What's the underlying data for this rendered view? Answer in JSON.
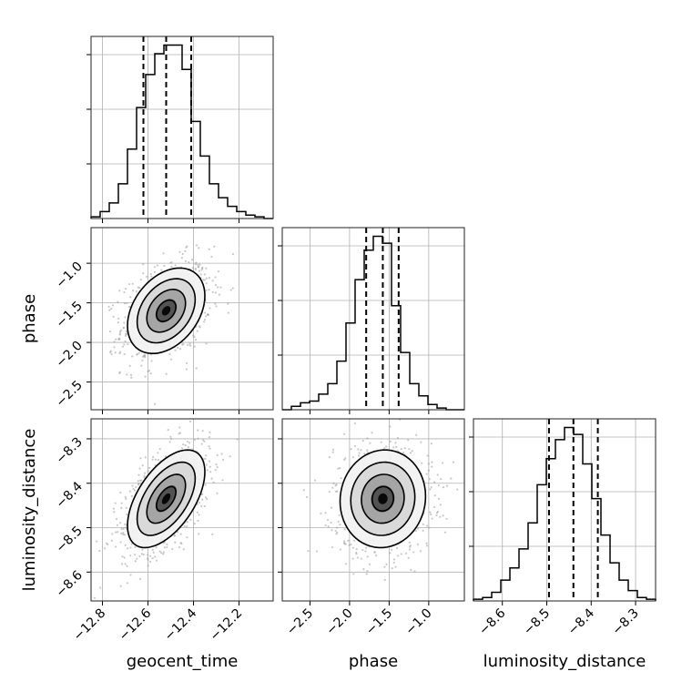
{
  "chart_data": {
    "type": "corner",
    "parameters": [
      {
        "name": "geocent_time",
        "label": "geocent_time",
        "range": [
          -12.85,
          -12.05
        ],
        "ticks": [
          -12.8,
          -12.6,
          -12.4,
          -12.2
        ],
        "tick_labels": [
          "−12.8",
          "−12.6",
          "−12.4",
          "−12.2"
        ],
        "quantiles": [
          -12.62,
          -12.52,
          -12.41
        ],
        "hist": {
          "edges": [
            -12.85,
            -12.81,
            -12.77,
            -12.73,
            -12.69,
            -12.65,
            -12.61,
            -12.57,
            -12.53,
            -12.49,
            -12.45,
            -12.41,
            -12.37,
            -12.33,
            -12.29,
            -12.25,
            -12.21,
            -12.17,
            -12.13,
            -12.09,
            -12.05
          ],
          "counts": [
            0.01,
            0.04,
            0.09,
            0.2,
            0.4,
            0.64,
            0.83,
            0.95,
            1.0,
            1.0,
            0.86,
            0.56,
            0.36,
            0.2,
            0.12,
            0.07,
            0.04,
            0.02,
            0.01,
            0.0
          ]
        }
      },
      {
        "name": "phase",
        "label": "phase",
        "range": [
          -2.85,
          -0.55
        ],
        "ticks": [
          -2.5,
          -2.0,
          -1.5,
          -1.0
        ],
        "tick_labels": [
          "−2.5",
          "−2.0",
          "−1.5",
          "−1.0"
        ],
        "quantiles": [
          -1.79,
          -1.58,
          -1.38
        ],
        "hist": {
          "edges": [
            -2.85,
            -2.735,
            -2.62,
            -2.505,
            -2.39,
            -2.275,
            -2.16,
            -2.045,
            -1.93,
            -1.815,
            -1.7,
            -1.585,
            -1.47,
            -1.355,
            -1.24,
            -1.125,
            -1.01,
            -0.895,
            -0.78,
            -0.665,
            -0.55
          ],
          "counts": [
            0.0,
            0.02,
            0.04,
            0.05,
            0.09,
            0.15,
            0.28,
            0.5,
            0.75,
            0.92,
            1.0,
            0.96,
            0.6,
            0.33,
            0.15,
            0.08,
            0.03,
            0.01,
            0.0,
            0.0
          ]
        }
      },
      {
        "name": "luminosity_distance",
        "label": "luminosity_distance",
        "range": [
          -8.665,
          -8.255
        ],
        "ticks": [
          -8.6,
          -8.5,
          -8.4,
          -8.3
        ],
        "tick_labels": [
          "−8.6",
          "−8.5",
          "−8.4",
          "−8.3"
        ],
        "quantiles": [
          -8.495,
          -8.44,
          -8.385
        ],
        "hist": {
          "edges": [
            -8.665,
            -8.6445,
            -8.624,
            -8.6035,
            -8.583,
            -8.5625,
            -8.542,
            -8.5215,
            -8.501,
            -8.4805,
            -8.46,
            -8.4395,
            -8.419,
            -8.3985,
            -8.378,
            -8.3575,
            -8.337,
            -8.3165,
            -8.296,
            -8.2755,
            -8.255
          ],
          "counts": [
            0.01,
            0.02,
            0.05,
            0.12,
            0.19,
            0.3,
            0.45,
            0.67,
            0.82,
            0.93,
            1.0,
            0.96,
            0.79,
            0.59,
            0.38,
            0.22,
            0.12,
            0.06,
            0.02,
            0.01
          ]
        }
      }
    ],
    "pairs": [
      {
        "x": "geocent_time",
        "y": "phase",
        "center": [
          -12.52,
          -1.6
        ],
        "sigma": [
          0.085,
          0.27
        ],
        "rho": 0.35,
        "points": 900
      },
      {
        "x": "geocent_time",
        "y": "luminosity_distance",
        "center": [
          -12.52,
          -8.435
        ],
        "sigma": [
          0.085,
          0.055
        ],
        "rho": 0.55,
        "points": 900
      },
      {
        "x": "phase",
        "y": "luminosity_distance",
        "center": [
          -1.58,
          -8.435
        ],
        "sigma": [
          0.27,
          0.055
        ],
        "rho": 0.05,
        "points": 900
      }
    ],
    "contour_levels_sigma": [
      0.5,
      1.0,
      1.5,
      2.0
    ],
    "grid": true
  }
}
